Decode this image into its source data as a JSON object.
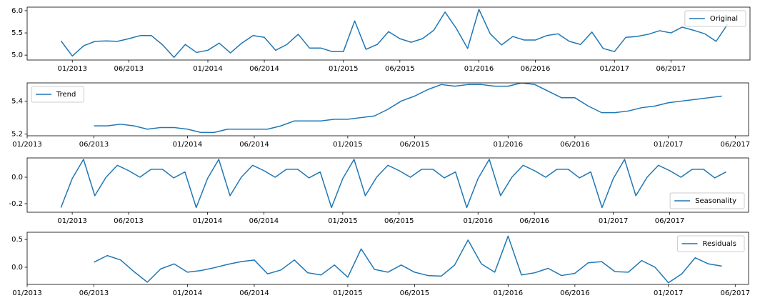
{
  "chart_data": [
    {
      "type": "line",
      "x": [
        "2012-12",
        "2013-01",
        "2013-02",
        "2013-03",
        "2013-04",
        "2013-05",
        "2013-06",
        "2013-07",
        "2013-08",
        "2013-09",
        "2013-10",
        "2013-11",
        "2013-12",
        "2014-01",
        "2014-02",
        "2014-03",
        "2014-04",
        "2014-05",
        "2014-06",
        "2014-07",
        "2014-08",
        "2014-09",
        "2014-10",
        "2014-11",
        "2014-12",
        "2015-01",
        "2015-02",
        "2015-03",
        "2015-04",
        "2015-05",
        "2015-06",
        "2015-07",
        "2015-08",
        "2015-09",
        "2015-10",
        "2015-11",
        "2015-12",
        "2016-01",
        "2016-02",
        "2016-03",
        "2016-04",
        "2016-05",
        "2016-06",
        "2016-07",
        "2016-08",
        "2016-09",
        "2016-10",
        "2016-11",
        "2016-12",
        "2017-01",
        "2017-02",
        "2017-03",
        "2017-04",
        "2017-05",
        "2017-06",
        "2017-07",
        "2017-08",
        "2017-09",
        "2017-10",
        "2017-11"
      ],
      "series": [
        {
          "name": "Original",
          "color": "#1f77b4",
          "values": [
            5.32,
            4.98,
            5.21,
            5.31,
            5.32,
            5.31,
            5.37,
            5.44,
            5.44,
            5.23,
            4.95,
            5.24,
            5.06,
            5.11,
            5.27,
            5.05,
            5.27,
            5.44,
            5.4,
            5.11,
            5.24,
            5.47,
            5.16,
            5.16,
            5.08,
            5.08,
            5.77,
            5.13,
            5.24,
            5.53,
            5.37,
            5.29,
            5.37,
            5.56,
            5.97,
            5.6,
            5.15,
            6.03,
            5.48,
            5.23,
            5.42,
            5.34,
            5.34,
            5.44,
            5.48,
            5.31,
            5.24,
            5.52,
            5.15,
            5.08,
            5.4,
            5.42,
            5.47,
            5.55,
            5.5,
            5.63,
            5.56,
            5.48,
            5.31,
            5.69
          ]
        }
      ],
      "xlim": [
        "2012-09",
        "2018-01"
      ],
      "xticks": [
        {
          "value": "2013-01",
          "label": "01/2013"
        },
        {
          "value": "2013-06",
          "label": "06/2013"
        },
        {
          "value": "2014-01",
          "label": "01/2014"
        },
        {
          "value": "2014-06",
          "label": "06/2014"
        },
        {
          "value": "2015-01",
          "label": "01/2015"
        },
        {
          "value": "2015-06",
          "label": "06/2015"
        },
        {
          "value": "2016-01",
          "label": "01/2016"
        },
        {
          "value": "2016-06",
          "label": "06/2016"
        },
        {
          "value": "2017-01",
          "label": "01/2017"
        },
        {
          "value": "2017-06",
          "label": "06/2017"
        }
      ],
      "ylim": [
        4.89,
        6.08
      ],
      "yticks": [
        {
          "value": 5,
          "label": "5.0"
        },
        5.5,
        {
          "value": 6,
          "label": "6.0"
        }
      ],
      "legend": "upper right"
    },
    {
      "type": "line",
      "x": [
        "2013-06",
        "2013-07",
        "2013-08",
        "2013-09",
        "2013-10",
        "2013-11",
        "2013-12",
        "2014-01",
        "2014-02",
        "2014-03",
        "2014-04",
        "2014-05",
        "2014-06",
        "2014-07",
        "2014-08",
        "2014-09",
        "2014-10",
        "2014-11",
        "2014-12",
        "2015-01",
        "2015-02",
        "2015-03",
        "2015-04",
        "2015-05",
        "2015-06",
        "2015-07",
        "2015-08",
        "2015-09",
        "2015-10",
        "2015-11",
        "2015-12",
        "2016-01",
        "2016-02",
        "2016-03",
        "2016-04",
        "2016-05",
        "2016-06",
        "2016-07",
        "2016-08",
        "2016-09",
        "2016-10",
        "2016-11",
        "2016-12",
        "2017-01",
        "2017-02",
        "2017-03",
        "2017-04",
        "2017-05"
      ],
      "series": [
        {
          "name": "Trend",
          "color": "#1f77b4",
          "values": [
            5.25,
            5.25,
            5.26,
            5.25,
            5.23,
            5.24,
            5.24,
            5.23,
            5.21,
            5.21,
            5.23,
            5.23,
            5.23,
            5.23,
            5.25,
            5.28,
            5.28,
            5.28,
            5.29,
            5.29,
            5.3,
            5.31,
            5.35,
            5.4,
            5.43,
            5.47,
            5.5,
            5.49,
            5.5,
            5.5,
            5.49,
            5.49,
            5.51,
            5.5,
            5.46,
            5.42,
            5.42,
            5.37,
            5.33,
            5.33,
            5.34,
            5.36,
            5.37,
            5.39,
            5.4,
            5.41,
            5.42,
            5.43
          ]
        }
      ],
      "xlim": [
        "2013-01",
        "2017-07"
      ],
      "xticks": [
        {
          "value": "2013-01",
          "label": "01/2013"
        },
        {
          "value": "2013-06",
          "label": "06/2013"
        },
        {
          "value": "2014-01",
          "label": "01/2014"
        },
        {
          "value": "2014-06",
          "label": "06/2014"
        },
        {
          "value": "2015-01",
          "label": "01/2015"
        },
        {
          "value": "2015-06",
          "label": "06/2015"
        },
        {
          "value": "2016-01",
          "label": "01/2016"
        },
        {
          "value": "2016-06",
          "label": "06/2016"
        },
        {
          "value": "2017-01",
          "label": "01/2017"
        },
        {
          "value": "2017-06",
          "label": "06/2017"
        }
      ],
      "ylim": [
        5.19,
        5.51
      ],
      "yticks": [
        5.2,
        5.4
      ],
      "legend": "upper left"
    },
    {
      "type": "line",
      "x": [
        "2012-12",
        "2013-01",
        "2013-02",
        "2013-03",
        "2013-04",
        "2013-05",
        "2013-06",
        "2013-07",
        "2013-08",
        "2013-09",
        "2013-10",
        "2013-11",
        "2013-12",
        "2014-01",
        "2014-02",
        "2014-03",
        "2014-04",
        "2014-05",
        "2014-06",
        "2014-07",
        "2014-08",
        "2014-09",
        "2014-10",
        "2014-11",
        "2014-12",
        "2015-01",
        "2015-02",
        "2015-03",
        "2015-04",
        "2015-05",
        "2015-06",
        "2015-07",
        "2015-08",
        "2015-09",
        "2015-10",
        "2015-11",
        "2015-12",
        "2016-01",
        "2016-02",
        "2016-03",
        "2016-04",
        "2016-05",
        "2016-06",
        "2016-07",
        "2016-08",
        "2016-09",
        "2016-10",
        "2016-11",
        "2016-12",
        "2017-01",
        "2017-02",
        "2017-03",
        "2017-04",
        "2017-05",
        "2017-06",
        "2017-07",
        "2017-08",
        "2017-09",
        "2017-10",
        "2017-11"
      ],
      "series": [
        {
          "name": "Seasonality",
          "color": "#1f77b4",
          "values": [
            -0.23,
            -0.01,
            0.135,
            -0.14,
            0.0,
            0.09,
            0.05,
            0.0,
            0.06,
            0.06,
            -0.005,
            0.04,
            -0.23,
            -0.01,
            0.135,
            -0.14,
            0.0,
            0.09,
            0.05,
            0.0,
            0.06,
            0.06,
            -0.005,
            0.04,
            -0.23,
            -0.01,
            0.135,
            -0.14,
            0.0,
            0.09,
            0.05,
            0.0,
            0.06,
            0.06,
            -0.005,
            0.04,
            -0.23,
            -0.01,
            0.135,
            -0.14,
            0.0,
            0.09,
            0.05,
            0.0,
            0.06,
            0.06,
            -0.005,
            0.04,
            -0.23,
            -0.01,
            0.135,
            -0.14,
            0.0,
            0.09,
            0.05,
            0.0,
            0.06,
            0.06,
            -0.005,
            0.04
          ]
        }
      ],
      "xlim": [
        "2012-09",
        "2018-01"
      ],
      "xticks": [
        {
          "value": "2013-01",
          "label": "01/2013"
        },
        {
          "value": "2013-06",
          "label": "06/2013"
        },
        {
          "value": "2014-01",
          "label": "01/2014"
        },
        {
          "value": "2014-06",
          "label": "06/2014"
        },
        {
          "value": "2015-01",
          "label": "01/2015"
        },
        {
          "value": "2015-06",
          "label": "06/2015"
        },
        {
          "value": "2016-01",
          "label": "01/2016"
        },
        {
          "value": "2016-06",
          "label": "06/2016"
        },
        {
          "value": "2017-01",
          "label": "01/2017"
        },
        {
          "value": "2017-06",
          "label": "06/2017"
        }
      ],
      "ylim": [
        -0.265,
        0.146
      ],
      "yticks": [
        -0.2,
        {
          "value": 0,
          "label": "0.0"
        }
      ],
      "legend": "lower right"
    },
    {
      "type": "line",
      "x": [
        "2013-06",
        "2013-07",
        "2013-08",
        "2013-09",
        "2013-10",
        "2013-11",
        "2013-12",
        "2014-01",
        "2014-02",
        "2014-03",
        "2014-04",
        "2014-05",
        "2014-06",
        "2014-07",
        "2014-08",
        "2014-09",
        "2014-10",
        "2014-11",
        "2014-12",
        "2015-01",
        "2015-02",
        "2015-03",
        "2015-04",
        "2015-05",
        "2015-06",
        "2015-07",
        "2015-08",
        "2015-09",
        "2015-10",
        "2015-11",
        "2015-12",
        "2016-01",
        "2016-02",
        "2016-03",
        "2016-04",
        "2016-05",
        "2016-06",
        "2016-07",
        "2016-08",
        "2016-09",
        "2016-10",
        "2016-11",
        "2016-12",
        "2017-01",
        "2017-02",
        "2017-03",
        "2017-04",
        "2017-05"
      ],
      "series": [
        {
          "name": "Residuals",
          "color": "#1f77b4",
          "values": [
            0.09,
            0.21,
            0.13,
            -0.08,
            -0.27,
            -0.03,
            0.06,
            -0.09,
            -0.06,
            -0.01,
            0.05,
            0.1,
            0.13,
            -0.12,
            -0.05,
            0.13,
            -0.1,
            -0.14,
            0.04,
            -0.18,
            0.33,
            -0.04,
            -0.09,
            0.04,
            -0.09,
            -0.15,
            -0.16,
            0.04,
            0.49,
            0.06,
            -0.09,
            0.56,
            -0.14,
            -0.1,
            -0.02,
            -0.15,
            -0.11,
            0.08,
            0.1,
            -0.08,
            -0.09,
            0.12,
            0.0,
            -0.28,
            -0.12,
            0.17,
            0.06,
            0.02
          ]
        }
      ],
      "xlim": [
        "2013-01",
        "2017-07"
      ],
      "xticks": [
        {
          "value": "2013-01",
          "label": "01/2013"
        },
        {
          "value": "2013-06",
          "label": "06/2013"
        },
        {
          "value": "2014-01",
          "label": "01/2014"
        },
        {
          "value": "2014-06",
          "label": "06/2014"
        },
        {
          "value": "2015-01",
          "label": "01/2015"
        },
        {
          "value": "2015-06",
          "label": "06/2015"
        },
        {
          "value": "2016-01",
          "label": "01/2016"
        },
        {
          "value": "2016-06",
          "label": "06/2016"
        },
        {
          "value": "2017-01",
          "label": "01/2017"
        },
        {
          "value": "2017-06",
          "label": "06/2017"
        }
      ],
      "ylim": [
        -0.31,
        0.63
      ],
      "yticks": [
        {
          "value": 0,
          "label": "0.0"
        },
        0.5
      ],
      "legend": "upper right"
    }
  ]
}
